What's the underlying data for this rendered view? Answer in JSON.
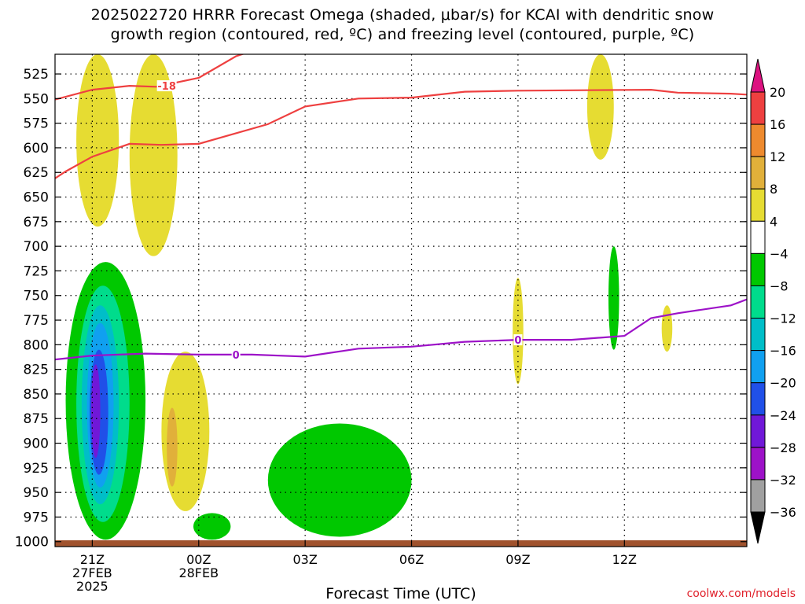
{
  "title_line1": "2025022720 HRRR Forecast Omega (shaded, μbar/s) for KCAI with dendritic snow",
  "title_line2": "growth region (contoured, red, ºC) and freezing level (contoured, purple, ºC)",
  "xlabel": "Forecast Time (UTC)",
  "credit": "coolwx.com/models",
  "colors": {
    "dgz": "#ee4040",
    "freezing": "#9d12c8",
    "ground": "#a0522d",
    "grid": "#000000"
  },
  "chart_data": {
    "type": "heatmap",
    "title": "2025022720 HRRR Forecast Omega (shaded, μbar/s) for KCAI with dendritic snow growth region (contoured, red, ºC) and freezing level (contoured, purple, ºC)",
    "xlabel": "Forecast Time (UTC)",
    "ylabel": "",
    "x_unit": "forecast hour",
    "xlim": [
      -0.7,
      12.3
    ],
    "ylim": [
      1005,
      505
    ],
    "y_axis": "pressure (hPa), inverted",
    "grid": true,
    "x_ticks": [
      {
        "x": 0,
        "labels": [
          "21Z",
          "27FEB",
          "2025"
        ]
      },
      {
        "x": 2,
        "labels": [
          "00Z",
          "28FEB"
        ]
      },
      {
        "x": 4,
        "labels": [
          "03Z"
        ]
      },
      {
        "x": 6,
        "labels": [
          "06Z"
        ]
      },
      {
        "x": 8,
        "labels": [
          "09Z"
        ]
      },
      {
        "x": 10,
        "labels": [
          "12Z"
        ]
      }
    ],
    "y_ticks": [
      525,
      550,
      575,
      600,
      625,
      650,
      675,
      700,
      725,
      750,
      775,
      800,
      825,
      850,
      875,
      900,
      925,
      950,
      975,
      1000
    ],
    "colorbar": {
      "levels": [
        20,
        16,
        12,
        8,
        4,
        -4,
        -8,
        -12,
        -16,
        -20,
        -24,
        -28,
        -32,
        -36
      ],
      "colors": [
        "#dc1280",
        "#ee4040",
        "#ee8a2e",
        "#e1b03a",
        "#e6dc32",
        "#ffffff",
        "#00c800",
        "#00dc8c",
        "#00bec8",
        "#10a0f0",
        "#2050e8",
        "#7018d8",
        "#9d12c8",
        "#a0a0a0",
        "#000000"
      ]
    },
    "series": [
      {
        "name": "-18",
        "color": "#ee4040",
        "points": [
          [
            -0.7,
            551
          ],
          [
            0,
            541
          ],
          [
            0.7,
            537
          ],
          [
            1.2,
            538
          ],
          [
            2,
            529
          ],
          [
            2.7,
            507
          ],
          [
            3.1,
            500
          ]
        ]
      },
      {
        "name": "",
        "color": "#ee4040",
        "points": [
          [
            -0.7,
            631
          ],
          [
            -0.5,
            624
          ],
          [
            0,
            609
          ],
          [
            0.7,
            596
          ],
          [
            1.3,
            597
          ],
          [
            2,
            596
          ],
          [
            3.3,
            576
          ],
          [
            4,
            558
          ],
          [
            5,
            550
          ],
          [
            6,
            549
          ],
          [
            7,
            543
          ],
          [
            8,
            542
          ],
          [
            10.5,
            541
          ],
          [
            11,
            544
          ],
          [
            12,
            545
          ],
          [
            12.3,
            546
          ]
        ]
      },
      {
        "name": "0",
        "color": "#9d12c8",
        "points": [
          [
            -0.7,
            815
          ],
          [
            0,
            811
          ],
          [
            1,
            809
          ],
          [
            2,
            810
          ],
          [
            3,
            810
          ],
          [
            4,
            812
          ],
          [
            5,
            804
          ],
          [
            6,
            802
          ],
          [
            7,
            797
          ],
          [
            8,
            795
          ],
          [
            9,
            795
          ],
          [
            10,
            791
          ],
          [
            10.5,
            773
          ],
          [
            11,
            768
          ],
          [
            12,
            760
          ],
          [
            12.3,
            754
          ]
        ]
      }
    ],
    "shaded_regions": [
      {
        "band": "4 to 8",
        "color": "#e6dc32",
        "x_range": [
          -0.3,
          0.5
        ],
        "p_range": [
          505,
          680
        ]
      },
      {
        "band": "4 to 8",
        "color": "#e6dc32",
        "x_range": [
          0.7,
          1.6
        ],
        "p_range": [
          505,
          710
        ]
      },
      {
        "band": "4 to 8",
        "color": "#e6dc32",
        "x_range": [
          9.3,
          9.8
        ],
        "p_range": [
          505,
          612
        ]
      },
      {
        "band": "4 to 8",
        "color": "#e6dc32",
        "x_range": [
          1.3,
          2.2
        ],
        "p_range": [
          807,
          969
        ]
      },
      {
        "band": "8 to 12",
        "color": "#e1b03a",
        "x_range": [
          1.4,
          1.6
        ],
        "p_range": [
          864,
          944
        ]
      },
      {
        "band": "4 to 8",
        "color": "#e6dc32",
        "x_range": [
          7.9,
          8.1
        ],
        "p_range": [
          732,
          840
        ]
      },
      {
        "band": "4 to 8",
        "color": "#e6dc32",
        "x_range": [
          10.7,
          10.9
        ],
        "p_range": [
          760,
          807
        ]
      },
      {
        "band": "-4 to -8",
        "color": "#00c800",
        "x_range": [
          -0.5,
          1.0
        ],
        "p_range": [
          716,
          998
        ]
      },
      {
        "band": "-4 to -8",
        "color": "#00c800",
        "x_range": [
          9.7,
          9.9
        ],
        "p_range": [
          700,
          805
        ]
      },
      {
        "band": "-4 to -8",
        "color": "#00c800",
        "x_range": [
          1.9,
          2.6
        ],
        "p_range": [
          971,
          998
        ]
      },
      {
        "band": "-4 to -8",
        "color": "#00c800",
        "x_range": [
          3.3,
          6.0
        ],
        "p_range": [
          880,
          995
        ]
      },
      {
        "band": "-8 to -12",
        "color": "#00dc8c",
        "x_range": [
          -0.3,
          0.7
        ],
        "p_range": [
          740,
          980
        ]
      },
      {
        "band": "-12 to -16",
        "color": "#00bec8",
        "x_range": [
          -0.2,
          0.5
        ],
        "p_range": [
          760,
          962
        ]
      },
      {
        "band": "-16 to -20",
        "color": "#10a0f0",
        "x_range": [
          -0.1,
          0.4
        ],
        "p_range": [
          778,
          945
        ]
      },
      {
        "band": "-20 to -24",
        "color": "#2050e8",
        "x_range": [
          -0.05,
          0.3
        ],
        "p_range": [
          805,
          932
        ]
      },
      {
        "band": "-24 to -28",
        "color": "#7018d8",
        "x_range": [
          -0.02,
          0.15
        ],
        "p_range": [
          820,
          915
        ]
      }
    ],
    "contour_labels": [
      {
        "text": "-18",
        "x": 1.4,
        "p": 537,
        "color": "#ee4040"
      },
      {
        "text": "0",
        "x": 2.7,
        "p": 810,
        "color": "#9d12c8"
      },
      {
        "text": "0",
        "x": 8.0,
        "p": 795,
        "color": "#9d12c8"
      }
    ]
  }
}
